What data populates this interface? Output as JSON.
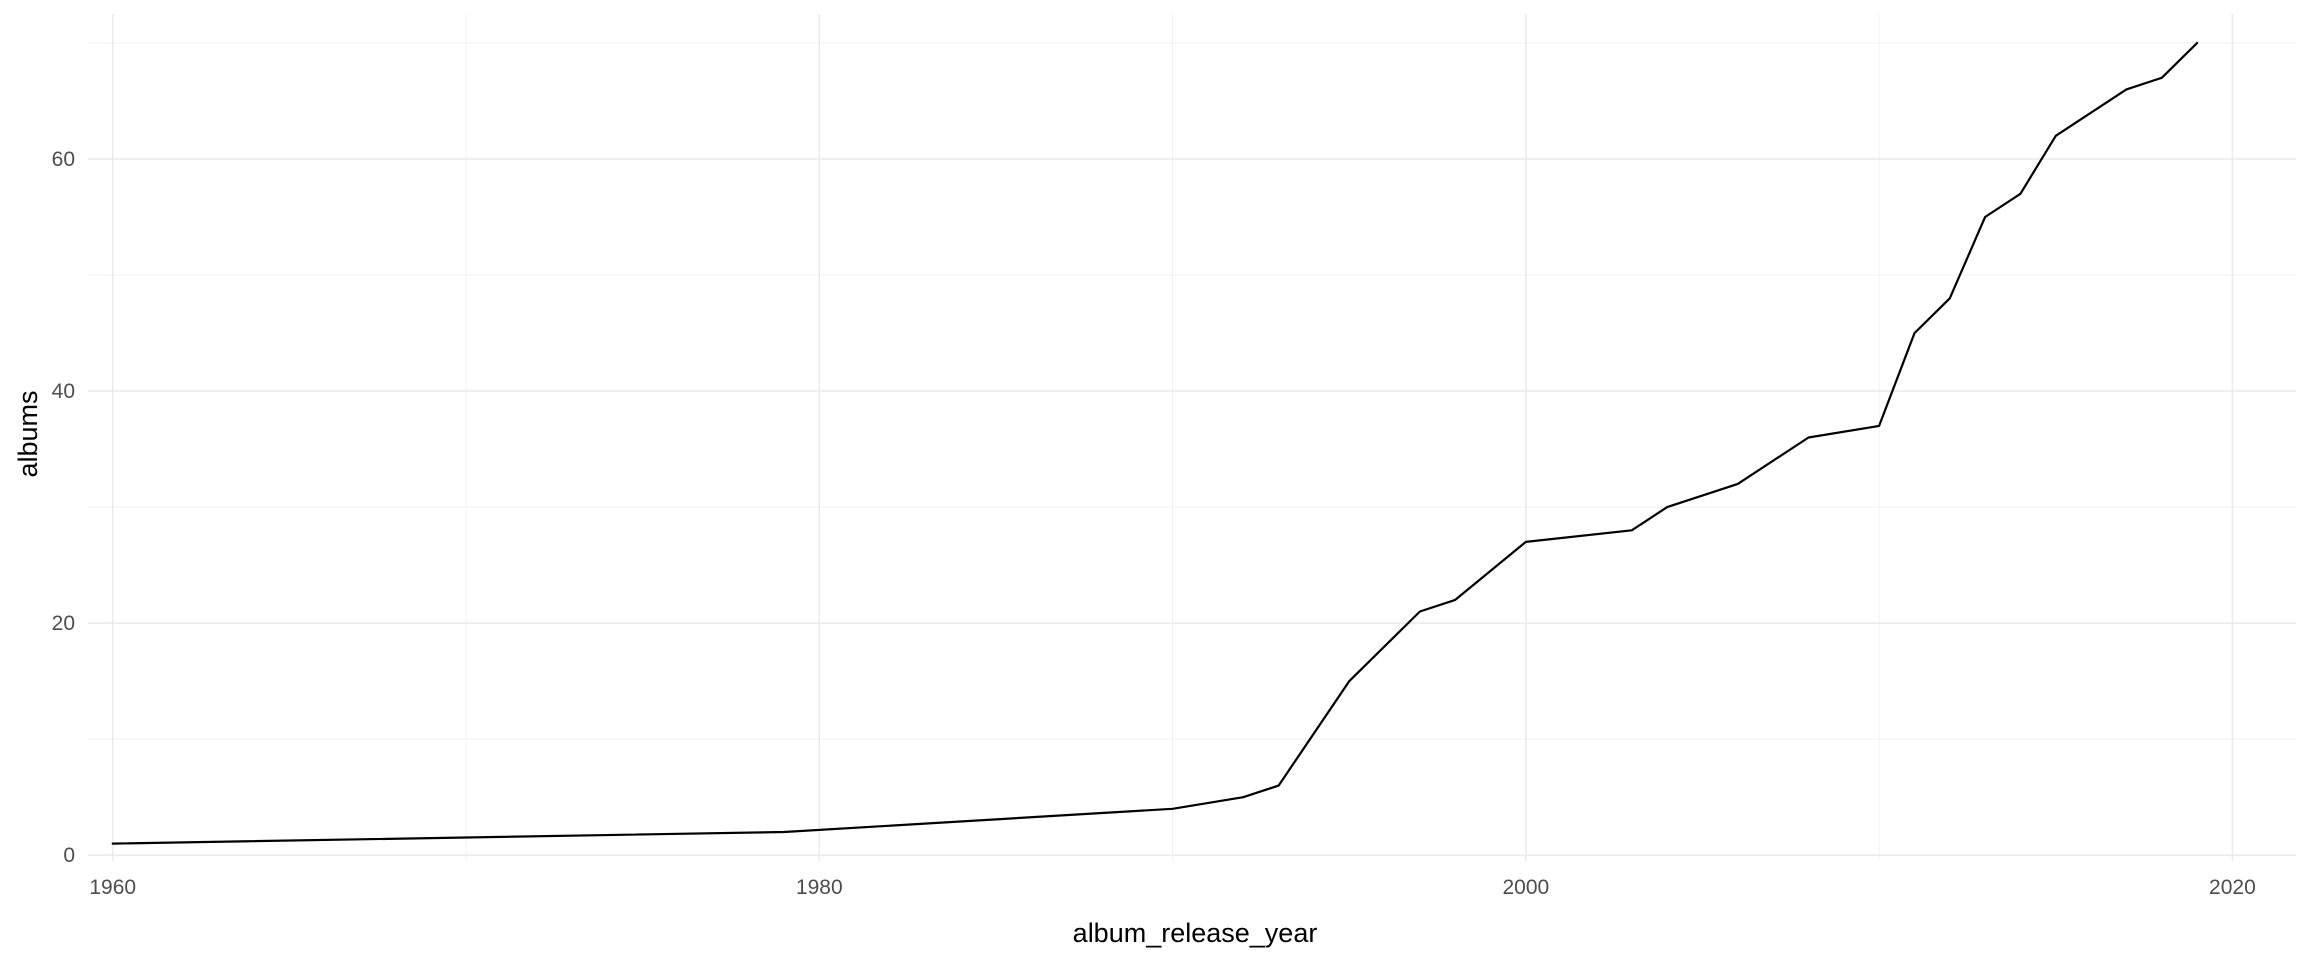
{
  "chart_data": {
    "type": "line",
    "xlabel": "album_release_year",
    "ylabel": "albums",
    "xlim": [
      1959.3,
      2021.8
    ],
    "ylim": [
      -0.5,
      72.5
    ],
    "x_ticks": [
      1960,
      1980,
      2000,
      2020
    ],
    "x_tick_labels": [
      "1960",
      "1980",
      "2000",
      "2020"
    ],
    "x_minor_ticks": [
      1970,
      1990,
      2010
    ],
    "y_ticks": [
      0,
      20,
      40,
      60
    ],
    "y_tick_labels": [
      "0",
      "20",
      "40",
      "60"
    ],
    "y_minor_ticks": [
      10,
      30,
      50,
      70
    ],
    "grid": true,
    "legend": "none",
    "series": [
      {
        "x": [
          1960,
          1979,
          1990,
          1992,
          1993,
          1995,
          1997,
          1998,
          2000,
          2003,
          2004,
          2006,
          2008,
          2010,
          2011,
          2012,
          2013,
          2014,
          2015,
          2017,
          2018,
          2019
        ],
        "y": [
          1,
          2,
          4,
          5,
          6,
          15,
          21,
          22,
          27,
          28,
          30,
          32,
          36,
          37,
          45,
          48,
          55,
          57,
          62,
          66,
          67,
          70
        ],
        "color": "#000000"
      }
    ]
  }
}
